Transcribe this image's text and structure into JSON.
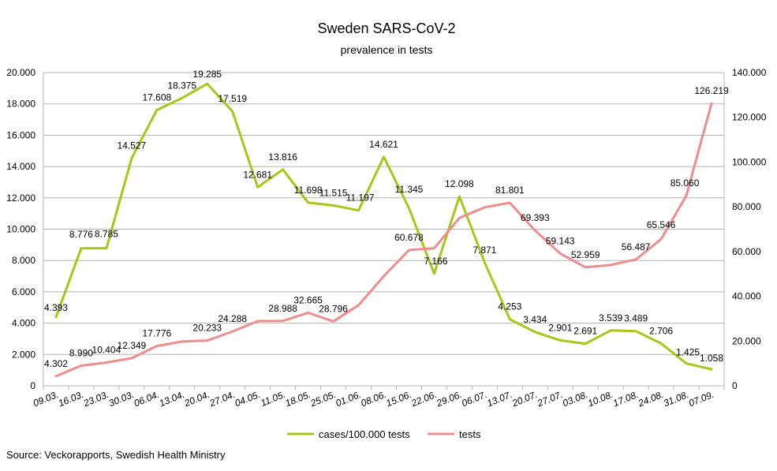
{
  "chart_data": {
    "type": "line",
    "title": "Sweden SARS-CoV-2",
    "subtitle": "prevalence in tests",
    "categories": [
      "09.03.",
      "16.03.",
      "23.03.",
      "30.03.",
      "06.04.",
      "13.04.",
      "20.04.",
      "27.04.",
      "04.05.",
      "11.05.",
      "18.05.",
      "25.05.",
      "01.06.",
      "08.06.",
      "15.06.",
      "22.06.",
      "29.06.",
      "06.07.",
      "13.07.",
      "20.07.",
      "27.07.",
      "03.08.",
      "10.08.",
      "17.08.",
      "24.08.",
      "31.08.",
      "07.09."
    ],
    "y_left": {
      "ylim": [
        0,
        20000
      ],
      "ticks": [
        "0",
        "2.000",
        "4.000",
        "6.000",
        "8.000",
        "10.000",
        "12.000",
        "14.000",
        "16.000",
        "18.000",
        "20.000"
      ]
    },
    "y_right": {
      "ylim": [
        0,
        140000
      ],
      "ticks": [
        "0",
        "20.000",
        "40.000",
        "60.000",
        "80.000",
        "100.000",
        "120.000",
        "140.000"
      ]
    },
    "grid": true,
    "legend_position": "bottom",
    "series": [
      {
        "name": "cases/100.000 tests",
        "axis": "left",
        "color": "#a6c718",
        "values": [
          4393,
          8776,
          8785,
          14527,
          17608,
          18375,
          19285,
          17519,
          12681,
          13816,
          11698,
          11515,
          11197,
          14621,
          11345,
          7166,
          12098,
          7871,
          4253,
          3434,
          2901,
          2691,
          3539,
          3489,
          2706,
          1425,
          1058
        ],
        "labels": [
          "4.393",
          "8.776",
          "8.785",
          "14.527",
          "17.608",
          "18.375",
          "19.285",
          "17.519",
          "12.681",
          "13.816",
          "11.698",
          "11.515",
          "11.197",
          "14.621",
          "11.345",
          "7.166",
          "12.098",
          "7.871",
          "4.253",
          "3.434",
          "2.901",
          "2.691",
          "3.539",
          "3.489",
          "2.706",
          "1.425",
          "1.058"
        ]
      },
      {
        "name": "tests",
        "axis": "right",
        "color": "#f08c8c",
        "values": [
          4302,
          8990,
          10404,
          12349,
          17776,
          19800,
          20233,
          24288,
          28900,
          28988,
          32665,
          28796,
          36000,
          49000,
          60678,
          61500,
          75000,
          79800,
          81801,
          69393,
          59143,
          52959,
          54000,
          56487,
          65546,
          85060,
          126219
        ],
        "labels": [
          "4.302",
          "8.990",
          "10.404",
          "12.349",
          "17.776",
          "",
          "20.233",
          "24.288",
          "",
          "28.988",
          "32.665",
          "28.796",
          "",
          "",
          "60.678",
          "",
          "",
          "",
          "81.801",
          "69.393",
          "59.143",
          "52.959",
          "",
          "56.487",
          "65.546",
          "85.060",
          "126.219"
        ]
      }
    ]
  },
  "source": "Source: Veckorapports, Swedish Health Ministry"
}
